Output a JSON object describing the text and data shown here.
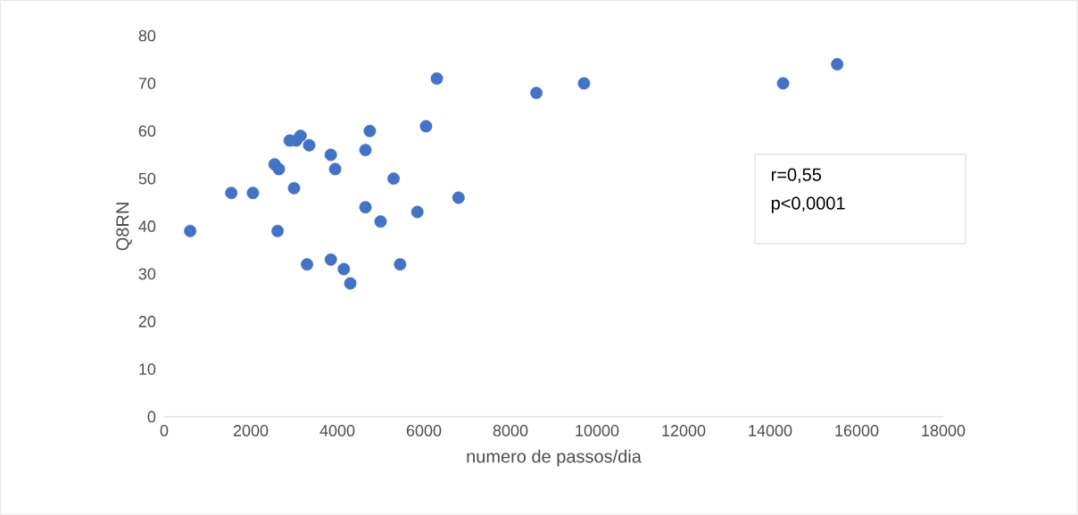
{
  "chart_data": {
    "type": "scatter",
    "xlabel": "numero de passos/dia",
    "ylabel": "Q8RN",
    "annotations": [
      "r=0,55",
      "p<0,0001"
    ],
    "x": [
      600,
      1550,
      2050,
      2550,
      2650,
      2620,
      3000,
      2900,
      3050,
      3150,
      3350,
      3300,
      3850,
      3950,
      3850,
      4150,
      4300,
      4650,
      4650,
      4750,
      5000,
      5300,
      5450,
      5850,
      6050,
      6300,
      6800,
      8600,
      9700,
      14300,
      15550
    ],
    "values": [
      39,
      47,
      47,
      53,
      52,
      39,
      48,
      58,
      58,
      59,
      57,
      32,
      55,
      52,
      33,
      31,
      28,
      44,
      56,
      60,
      41,
      50,
      32,
      43,
      61,
      71,
      46,
      68,
      70,
      70,
      74
    ],
    "color": "#4472c4",
    "marker": "circle",
    "xlim": [
      0,
      18000
    ],
    "xticks": [
      0,
      2000,
      4000,
      6000,
      8000,
      10000,
      12000,
      14000,
      16000,
      18000
    ],
    "ylim": [
      0,
      80
    ],
    "yticks": [
      0,
      10,
      20,
      30,
      40,
      50,
      60,
      70,
      80
    ]
  }
}
